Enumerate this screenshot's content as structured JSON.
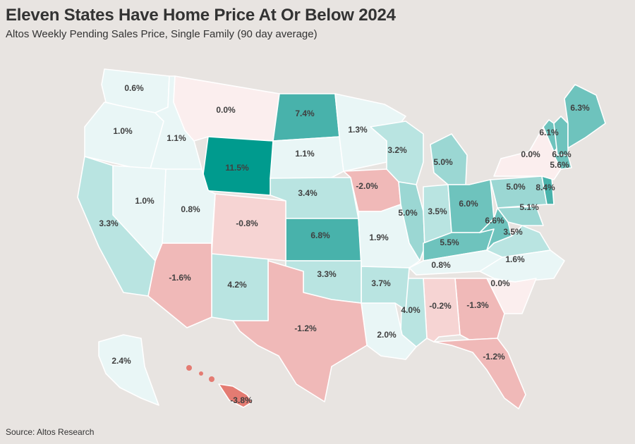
{
  "title": "Eleven States Have Home Price At Or Below 2024",
  "subtitle": "Altos Weekly Pending Sales Price, Single Family (90 day average)",
  "source": "Source: Altos Research",
  "colors": {
    "background": "#e8e4e1",
    "negative_light": "#fbeeee",
    "negative_medium": "#f6d4d3",
    "negative_strong": "#f0b9b8",
    "negative_hawaii": "#e47b72",
    "positive_lightest": "#e9f6f6",
    "positive_light": "#b9e4e1",
    "positive_medium": "#9bd7d3",
    "positive_strong": "#6ec3bd",
    "positive_stronger": "#48b2ab",
    "positive_darkest": "#009b8e",
    "border": "#ffffff",
    "text": "#333333"
  },
  "states": [
    {
      "id": "WA",
      "value": "0.6%"
    },
    {
      "id": "OR",
      "value": "1.0%"
    },
    {
      "id": "ID",
      "value": "1.1%"
    },
    {
      "id": "MT",
      "value": "0.0%"
    },
    {
      "id": "WY",
      "value": "11.5%"
    },
    {
      "id": "ND",
      "value": "7.4%"
    },
    {
      "id": "SD",
      "value": "1.1%"
    },
    {
      "id": "NE",
      "value": "3.4%"
    },
    {
      "id": "KS",
      "value": "6.8%"
    },
    {
      "id": "MN",
      "value": "1.3%"
    },
    {
      "id": "IA",
      "value": "-2.0%"
    },
    {
      "id": "MO",
      "value": "1.9%"
    },
    {
      "id": "WI",
      "value": "3.2%"
    },
    {
      "id": "IL",
      "value": "5.0%"
    },
    {
      "id": "IN",
      "value": "3.5%"
    },
    {
      "id": "MI",
      "value": "5.0%"
    },
    {
      "id": "OH",
      "value": "6.0%"
    },
    {
      "id": "KY",
      "value": "5.5%"
    },
    {
      "id": "TN",
      "value": "0.8%"
    },
    {
      "id": "WV",
      "value": "6.6%"
    },
    {
      "id": "VA",
      "value": "3.5%"
    },
    {
      "id": "MD",
      "value": "5.1%"
    },
    {
      "id": "PA",
      "value": "5.0%"
    },
    {
      "id": "NJ",
      "value": "8.4%"
    },
    {
      "id": "NY",
      "value": "0.0%"
    },
    {
      "id": "VT",
      "value": "6.1%"
    },
    {
      "id": "NH",
      "value": "6.0%"
    },
    {
      "id": "ME",
      "value": "6.3%"
    },
    {
      "id": "MA",
      "value": "5.6%"
    },
    {
      "id": "NC",
      "value": "1.6%"
    },
    {
      "id": "SC",
      "value": "0.0%"
    },
    {
      "id": "GA",
      "value": "-1.3%"
    },
    {
      "id": "AL",
      "value": "-0.2%"
    },
    {
      "id": "MS",
      "value": "4.0%"
    },
    {
      "id": "FL",
      "value": "-1.2%"
    },
    {
      "id": "LA",
      "value": "2.0%"
    },
    {
      "id": "AR",
      "value": "3.7%"
    },
    {
      "id": "OK",
      "value": "3.3%"
    },
    {
      "id": "TX",
      "value": "-1.2%"
    },
    {
      "id": "NM",
      "value": "4.2%"
    },
    {
      "id": "CO",
      "value": "-0.8%"
    },
    {
      "id": "AZ",
      "value": "-1.6%"
    },
    {
      "id": "UT",
      "value": "0.8%"
    },
    {
      "id": "NV",
      "value": "1.0%"
    },
    {
      "id": "CA",
      "value": "3.3%"
    },
    {
      "id": "AK",
      "value": "2.4%"
    },
    {
      "id": "HI",
      "value": "-3.8%"
    }
  ]
}
